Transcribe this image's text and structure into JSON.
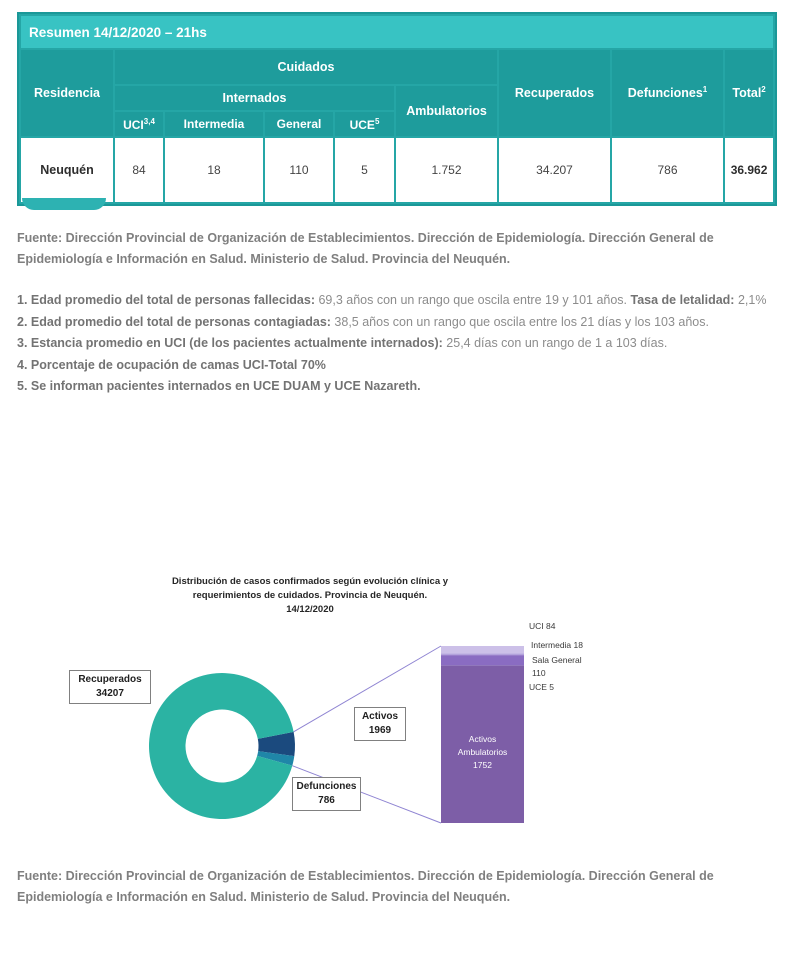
{
  "table": {
    "title": "Resumen 14/12/2020 – 21hs",
    "col_residencia": "Residencia",
    "group_cuidados": "Cuidados",
    "group_internados": "Internados",
    "col_uci": "UCI",
    "col_uci_sup": "3,4",
    "col_intermedia": "Intermedia",
    "col_general": "General",
    "col_uce": "UCE",
    "col_uce_sup": "5",
    "col_ambulatorios": "Ambulatorios",
    "col_recuperados": "Recuperados",
    "col_defunciones": "Defunciones",
    "col_defunciones_sup": "1",
    "col_total": "Total",
    "col_total_sup": "2",
    "row": {
      "residencia": "Neuquén",
      "uci": "84",
      "intermedia": "18",
      "general": "110",
      "uce": "5",
      "ambulatorios": "1.752",
      "recuperados": "34.207",
      "defunciones": "786",
      "total": "36.962"
    }
  },
  "source_top": "Fuente: Dirección Provincial de Organización de Establecimientos. Dirección de Epidemiología. Dirección General de Epidemiología e Información en Salud. Ministerio de Salud. Provincia del Neuquén.",
  "footnotes": [
    {
      "label": "1. Edad promedio del total de personas fallecidas:",
      "text": " 69,3 años con un rango que oscila entre 19 y 101 años.",
      "label2": " Tasa de letalidad:",
      "text2": " 2,1%"
    },
    {
      "label": "2. Edad promedio del total de personas contagiadas:",
      "text": " 38,5 años con un rango que oscila entre los 21 días y los 103 años."
    },
    {
      "label": "3. Estancia promedio en UCI (de los pacientes actualmente internados):",
      "text": " 25,4 días con un rango de 1 a 103 días."
    },
    {
      "label": "4. Porcentaje de ocupación de camas UCI-Total 70%"
    },
    {
      "label": "5. Se informan pacientes internados en UCE DUAM y UCE Nazareth."
    }
  ],
  "chart_data": {
    "type": "pie",
    "subtype": "bar-of-pie-donut",
    "title": "Distribución de casos confirmados según evolución clínica y requerimientos de cuidados. Provincia de Neuquén. 14/12/2020",
    "title_lines": [
      "Distribución de casos confirmados según evolución clínica y",
      "requerimientos de cuidados. Provincia de Neuquén.",
      "14/12/2020"
    ],
    "donut": {
      "total": 36962,
      "start_angle_deg": -11.2,
      "slices": [
        {
          "name": "Activos",
          "value": 1969,
          "color": "#1B4A7E"
        },
        {
          "name": "Defunciones",
          "value": 786,
          "color": "#1F86A8"
        },
        {
          "name": "Recuperados",
          "value": 34207,
          "color": "#2BB3A3"
        }
      ]
    },
    "callouts": {
      "recuperados": {
        "line1": "Recuperados",
        "line2": "34207"
      },
      "activos": {
        "line1": "Activos",
        "line2": "1969"
      },
      "defunciones": {
        "line1": "Defunciones",
        "line2": "786"
      }
    },
    "bar": {
      "total": 1969,
      "segments": [
        {
          "name": "UCI",
          "value": 84,
          "color": "#CCC0E8",
          "label": "UCI 84"
        },
        {
          "name": "Intermedia",
          "value": 18,
          "color": "#B3A2DC",
          "label": "Intermedia 18"
        },
        {
          "name": "Sala General",
          "value": 110,
          "color": "#8A6CC2",
          "label": "Sala General 110"
        },
        {
          "name": "UCE",
          "value": 5,
          "color": "#9A86CC",
          "label": "UCE 5"
        },
        {
          "name": "Activos Ambulatorios",
          "value": 1752,
          "color": "#7D5EA7"
        }
      ],
      "inside_label": {
        "line1": "Activos",
        "line2": "Ambulatorios",
        "line3": "1752"
      }
    },
    "leader_line_color": "#8F84D2",
    "accent_teal": "#2BB3A3"
  },
  "source_bottom": "Fuente: Dirección Provincial de Organización de Establecimientos. Dirección de Epidemiología. Dirección General de Epidemiología e Información en Salud. Ministerio de Salud. Provincia del Neuquén."
}
